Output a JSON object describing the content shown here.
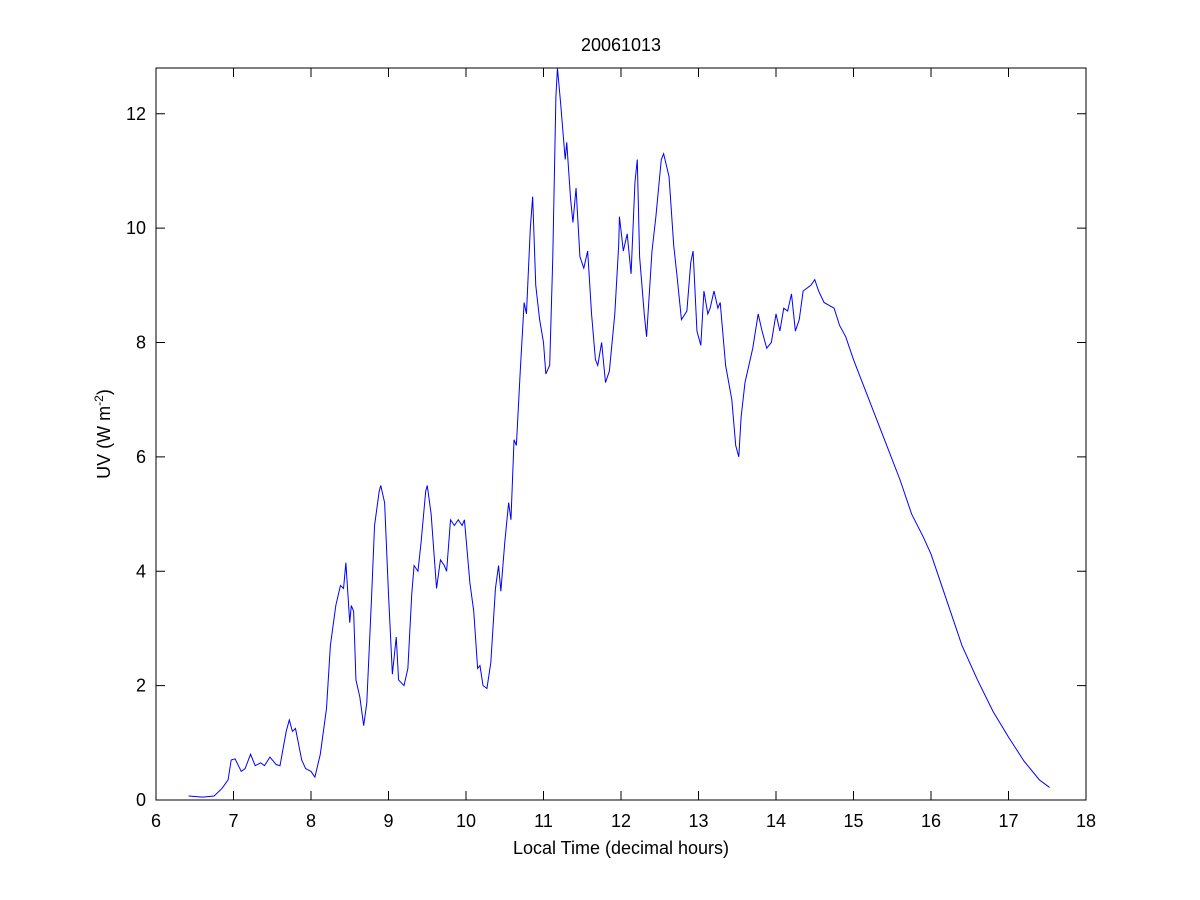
{
  "chart_data": {
    "type": "line",
    "title": "20061013",
    "xlabel": "Local Time (decimal hours)",
    "ylabel": {
      "text": "UV (W m",
      "superscript": "-2",
      "suffix": ")"
    },
    "xlim": [
      6,
      18
    ],
    "xticks": [
      6,
      7,
      8,
      9,
      10,
      11,
      12,
      13,
      14,
      15,
      16,
      17,
      18
    ],
    "ylim": [
      0,
      12.8
    ],
    "yticks": [
      0,
      2,
      4,
      6,
      8,
      10,
      12
    ],
    "grid": false,
    "series": [
      {
        "color": "#0000ff",
        "x": [
          6.42,
          6.6,
          6.75,
          6.85,
          6.93,
          6.97,
          7.02,
          7.1,
          7.15,
          7.22,
          7.28,
          7.35,
          7.4,
          7.47,
          7.55,
          7.6,
          7.68,
          7.72,
          7.76,
          7.8,
          7.88,
          7.93,
          8.0,
          8.05,
          8.12,
          8.2,
          8.25,
          8.32,
          8.38,
          8.42,
          8.45,
          8.5,
          8.52,
          8.55,
          8.58,
          8.63,
          8.68,
          8.72,
          8.78,
          8.82,
          8.88,
          8.9,
          8.95,
          9.0,
          9.05,
          9.1,
          9.13,
          9.2,
          9.25,
          9.3,
          9.33,
          9.38,
          9.42,
          9.48,
          9.5,
          9.55,
          9.62,
          9.67,
          9.72,
          9.75,
          9.8,
          9.85,
          9.9,
          9.95,
          9.98,
          10.05,
          10.1,
          10.15,
          10.18,
          10.22,
          10.27,
          10.32,
          10.38,
          10.42,
          10.45,
          10.5,
          10.55,
          10.58,
          10.62,
          10.65,
          10.7,
          10.75,
          10.78,
          10.83,
          10.86,
          10.9,
          10.95,
          11.0,
          11.03,
          11.08,
          11.12,
          11.16,
          11.18,
          11.22,
          11.28,
          11.3,
          11.35,
          11.38,
          11.42,
          11.47,
          11.52,
          11.57,
          11.62,
          11.67,
          11.7,
          11.75,
          11.8,
          11.85,
          11.92,
          11.97,
          11.98,
          12.03,
          12.08,
          12.13,
          12.18,
          12.21,
          12.24,
          12.3,
          12.33,
          12.4,
          12.45,
          12.52,
          12.55,
          12.62,
          12.68,
          12.72,
          12.78,
          12.85,
          12.9,
          12.93,
          12.98,
          13.03,
          13.07,
          13.12,
          13.15,
          13.2,
          13.25,
          13.28,
          13.35,
          13.43,
          13.48,
          13.52,
          13.55,
          13.6,
          13.7,
          13.77,
          13.82,
          13.88,
          13.94,
          14.0,
          14.05,
          14.1,
          14.15,
          14.2,
          14.25,
          14.3,
          14.35,
          14.45,
          14.5,
          14.55,
          14.62,
          14.75,
          14.82,
          14.9,
          15.0,
          15.2,
          15.4,
          15.6,
          15.75,
          15.9,
          16.0,
          16.2,
          16.4,
          16.6,
          16.8,
          17.0,
          17.2,
          17.4,
          17.53
        ],
        "values": [
          0.07,
          0.05,
          0.07,
          0.2,
          0.35,
          0.7,
          0.72,
          0.5,
          0.55,
          0.8,
          0.6,
          0.65,
          0.6,
          0.75,
          0.62,
          0.6,
          1.2,
          1.4,
          1.2,
          1.25,
          0.7,
          0.55,
          0.5,
          0.4,
          0.8,
          1.6,
          2.7,
          3.4,
          3.75,
          3.7,
          4.15,
          3.1,
          3.4,
          3.3,
          2.1,
          1.8,
          1.3,
          1.7,
          3.5,
          4.8,
          5.4,
          5.5,
          5.2,
          3.6,
          2.2,
          2.85,
          2.1,
          2.0,
          2.3,
          3.6,
          4.1,
          4.0,
          4.5,
          5.4,
          5.5,
          5.0,
          3.7,
          4.2,
          4.1,
          4.0,
          4.9,
          4.8,
          4.9,
          4.8,
          4.9,
          3.8,
          3.3,
          2.3,
          2.35,
          2.0,
          1.95,
          2.4,
          3.7,
          4.1,
          3.65,
          4.5,
          5.2,
          4.9,
          6.3,
          6.2,
          7.5,
          8.7,
          8.5,
          10.0,
          10.55,
          9.0,
          8.4,
          8.0,
          7.45,
          7.6,
          9.5,
          12.3,
          12.8,
          12.2,
          11.2,
          11.5,
          10.5,
          10.1,
          10.7,
          9.5,
          9.3,
          9.6,
          8.5,
          7.7,
          7.6,
          8.0,
          7.3,
          7.5,
          8.5,
          9.7,
          10.2,
          9.6,
          9.9,
          9.2,
          10.8,
          11.2,
          9.5,
          8.5,
          8.1,
          9.6,
          10.2,
          11.2,
          11.3,
          10.9,
          9.7,
          9.2,
          8.4,
          8.55,
          9.4,
          9.6,
          8.2,
          7.95,
          8.9,
          8.5,
          8.6,
          8.9,
          8.6,
          8.7,
          7.6,
          7.0,
          6.2,
          6.0,
          6.7,
          7.3,
          7.9,
          8.5,
          8.2,
          7.9,
          8.0,
          8.5,
          8.2,
          8.6,
          8.55,
          8.85,
          8.2,
          8.4,
          8.9,
          9.0,
          9.1,
          8.9,
          8.7,
          8.6,
          8.3,
          8.1,
          7.7,
          7.0,
          6.3,
          5.6,
          5.0,
          4.6,
          4.3,
          3.5,
          2.7,
          2.1,
          1.55,
          1.1,
          0.68,
          0.35,
          0.22
        ]
      }
    ]
  }
}
